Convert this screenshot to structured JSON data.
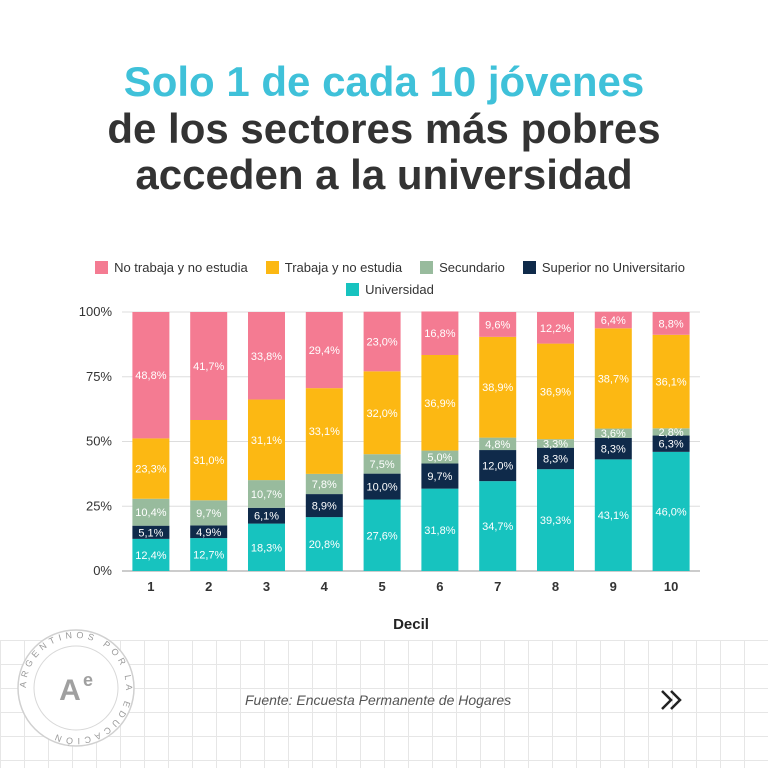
{
  "headline": {
    "line1": "Solo 1 de cada 10 jóvenes",
    "line2": "de los sectores más pobres",
    "line3": "acceden a la universidad"
  },
  "source": "Fuente: Encuesta Permanente de Hogares",
  "seal": {
    "text": "ARGENTINOS POR LA EDUCACIÓN",
    "monogram": "Ae"
  },
  "icons": {
    "next": "double-chevron-right-icon"
  },
  "chart_data": {
    "type": "bar",
    "stacked": true,
    "xlabel": "Decil",
    "ylabel": "",
    "ylim": [
      0,
      100
    ],
    "yticks": [
      "0%",
      "25%",
      "50%",
      "75%",
      "100%"
    ],
    "categories": [
      "1",
      "2",
      "3",
      "4",
      "5",
      "6",
      "7",
      "8",
      "9",
      "10"
    ],
    "legend_position": "top",
    "series": [
      {
        "name": "Universidad",
        "color": "#17c3bf",
        "values": [
          12.4,
          12.7,
          18.3,
          20.8,
          27.6,
          31.8,
          34.7,
          39.3,
          43.1,
          46.0
        ],
        "labels": [
          "12,4%",
          "12,7%",
          "18,3%",
          "20,8%",
          "27,6%",
          "31,8%",
          "34,7%",
          "39,3%",
          "43,1%",
          "46,0%"
        ]
      },
      {
        "name": "Superior no Universitario",
        "color": "#0f2a4a",
        "values": [
          5.1,
          4.9,
          6.1,
          8.9,
          10.0,
          9.7,
          12.0,
          8.3,
          8.3,
          6.3
        ],
        "labels": [
          "5,1%",
          "4,9%",
          "6,1%",
          "8,9%",
          "10,0%",
          "9,7%",
          "12,0%",
          "8,3%",
          "8,3%",
          "6,3%"
        ]
      },
      {
        "name": "Secundario",
        "color": "#98bb9d",
        "values": [
          10.4,
          9.7,
          10.7,
          7.8,
          7.5,
          5.0,
          4.8,
          3.3,
          3.6,
          2.8
        ],
        "labels": [
          "10,4%",
          "9,7%",
          "10,7%",
          "7,8%",
          "7,5%",
          "5,0%",
          "4,8%",
          "3,3%",
          "3,6%",
          "2,8%"
        ]
      },
      {
        "name": "Trabaja y no estudia",
        "color": "#fcb813",
        "values": [
          23.3,
          31.0,
          31.1,
          33.1,
          32.0,
          36.9,
          38.9,
          36.9,
          38.7,
          36.1
        ],
        "labels": [
          "23,3%",
          "31,0%",
          "31,1%",
          "33,1%",
          "32,0%",
          "36,9%",
          "38,9%",
          "36,9%",
          "38,7%",
          "36,1%"
        ]
      },
      {
        "name": "No trabaja y no estudia",
        "color": "#f47b92",
        "values": [
          48.8,
          41.7,
          33.8,
          29.4,
          23.0,
          16.8,
          9.6,
          12.2,
          6.4,
          8.8
        ],
        "labels": [
          "48,8%",
          "41,7%",
          "33,8%",
          "29,4%",
          "23,0%",
          "16,8%",
          "9,6%",
          "12,2%",
          "6,4%",
          "8,8%"
        ]
      }
    ],
    "legend_order": [
      "No trabaja y no estudia",
      "Trabaja y no estudia",
      "Secundario",
      "Superior no Universitario",
      "Universidad"
    ]
  }
}
